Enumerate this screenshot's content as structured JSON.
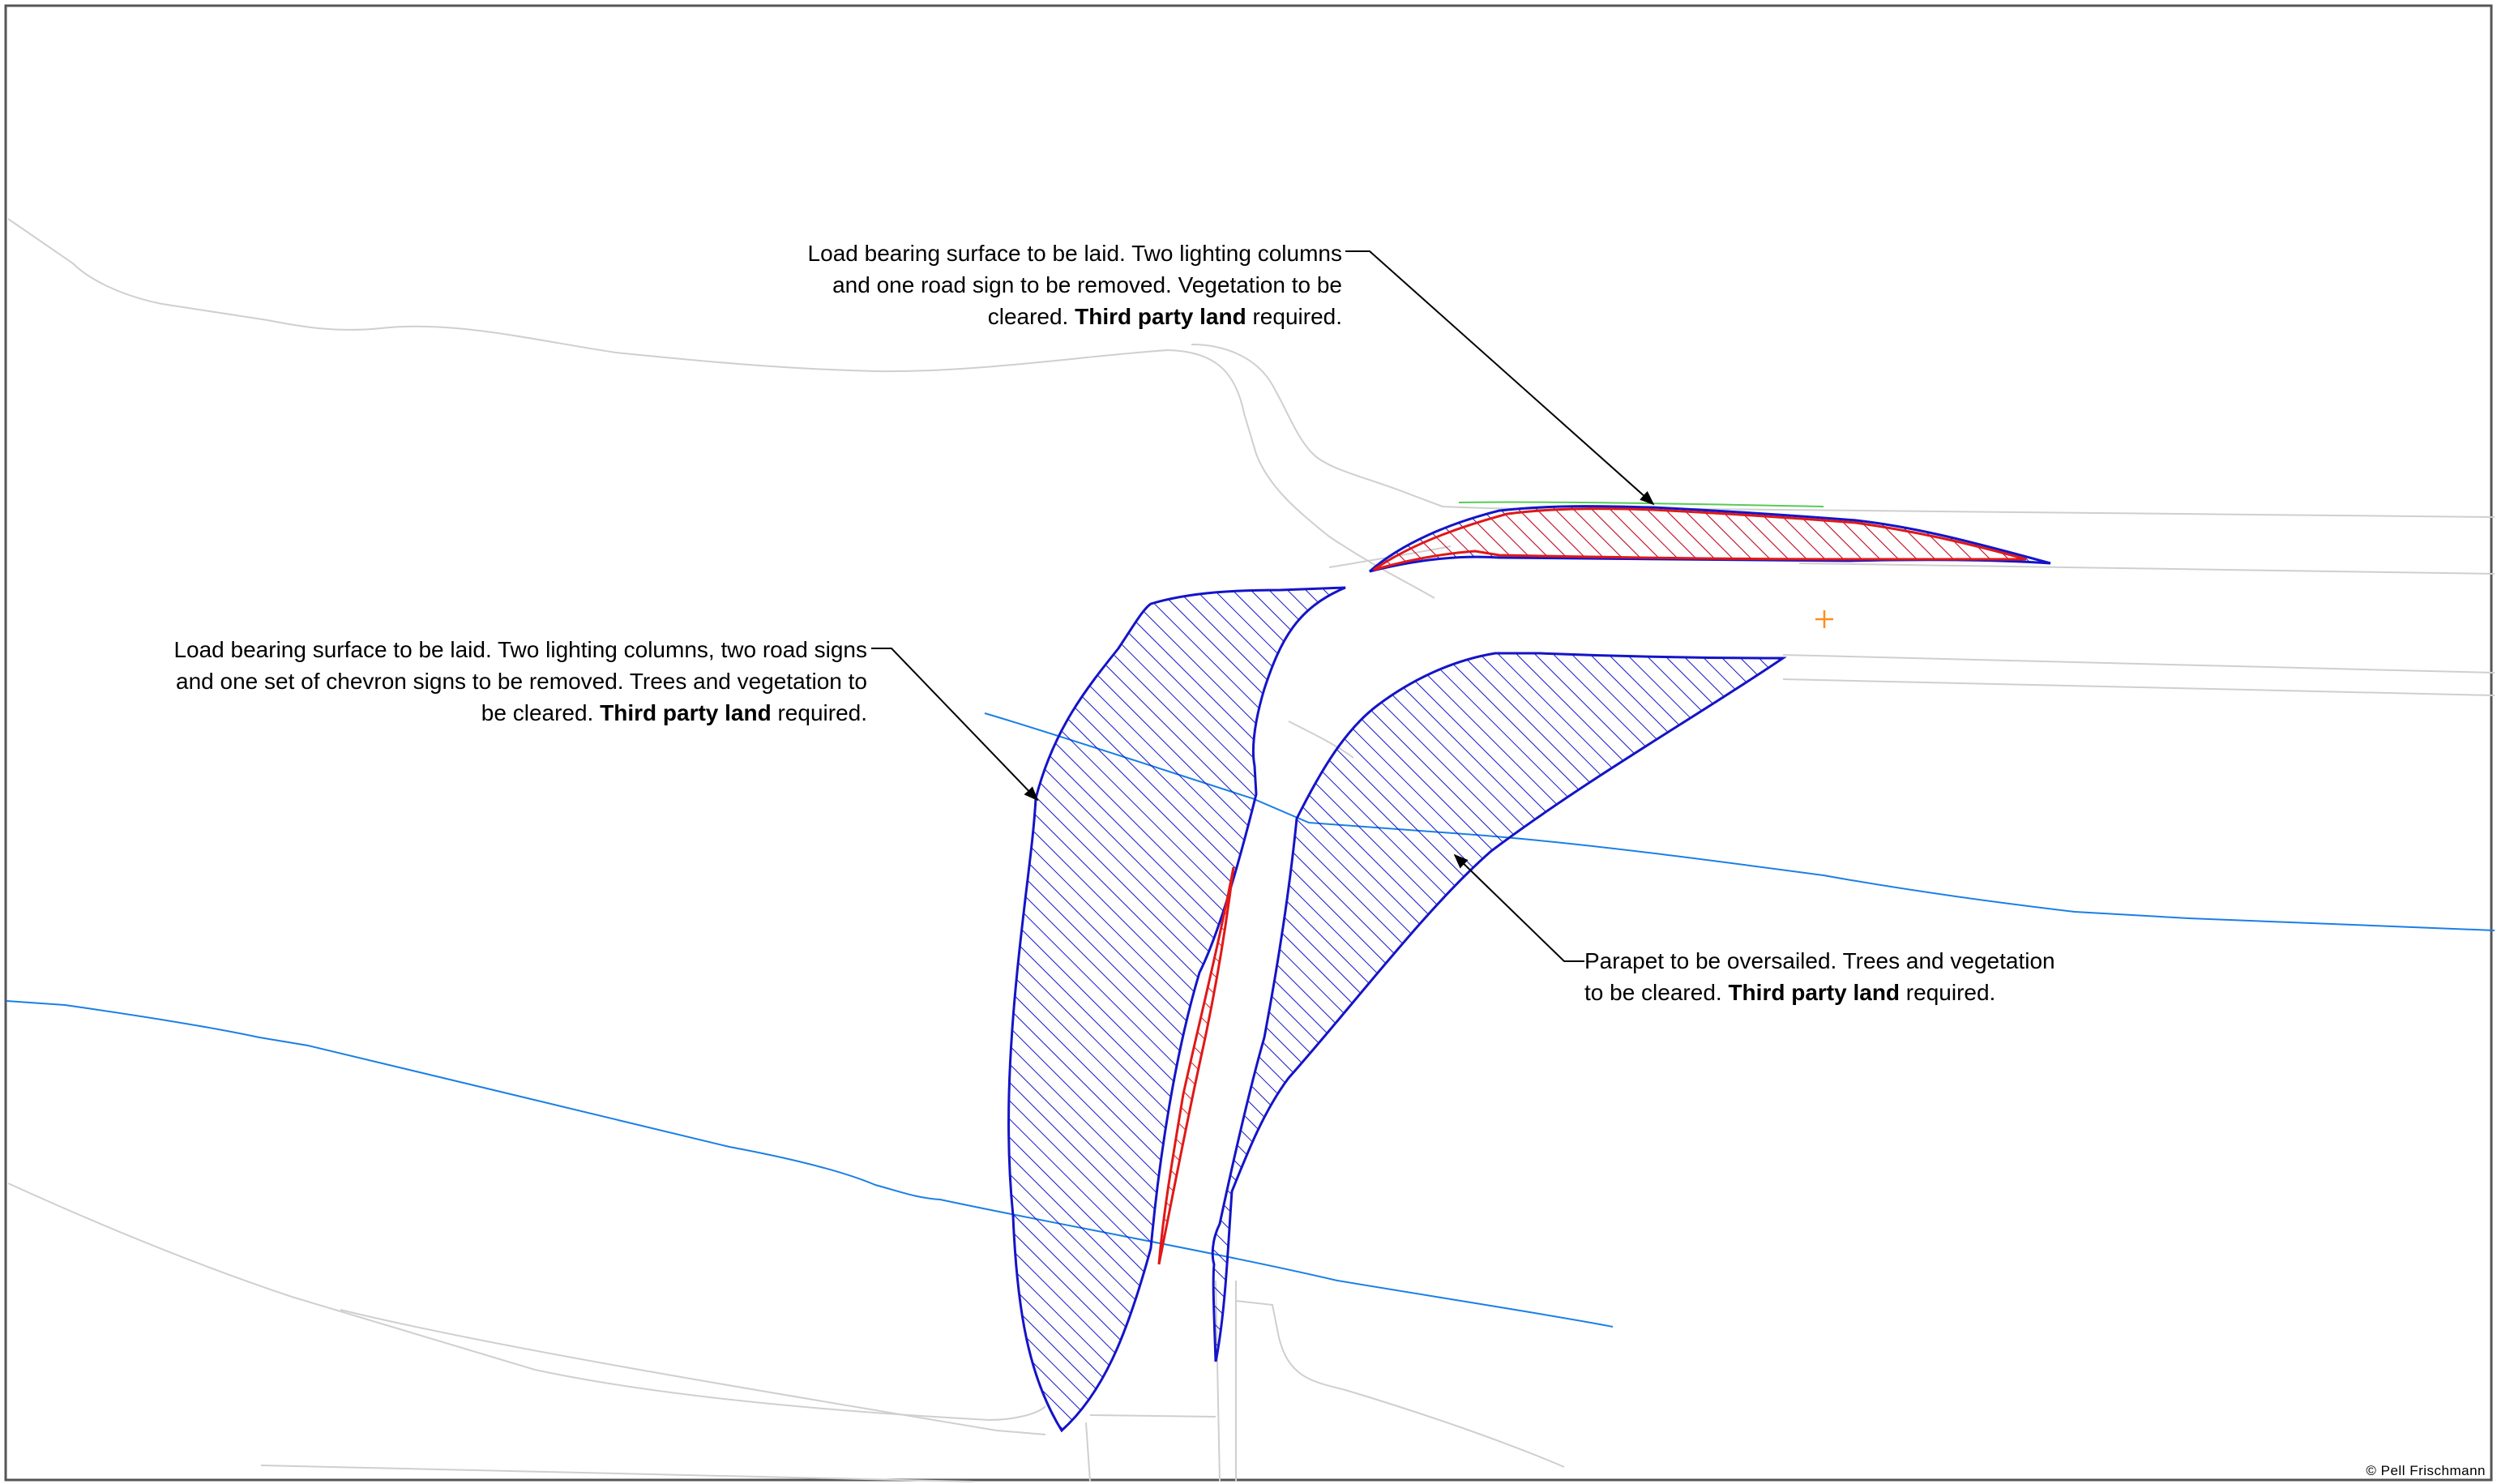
{
  "annotations": {
    "upper_right": {
      "line1": "Load bearing surface to be laid. Two lighting columns",
      "line2": "and one road sign to be removed. Vegetation to be",
      "line3_pre": "cleared. ",
      "line3_bold": "Third party land",
      "line3_post": " required."
    },
    "left": {
      "line1": "Load bearing surface to be laid. Two lighting columns, two road signs",
      "line2": "and one set of chevron signs to be removed. Trees and vegetation to",
      "line3_pre": "be cleared. ",
      "line3_bold": "Third party land",
      "line3_post": " required."
    },
    "parapet": {
      "line1": "Parapet to be oversailed.  Trees and vegetation",
      "line2_pre": "to be cleared. ",
      "line2_bold": "Third party land",
      "line2_post": " required."
    }
  },
  "copyright": "© Pell  Frischmann",
  "colors": {
    "blue_hatch": "#1414c8",
    "red_hatch": "#e01818",
    "water_line": "#1a7fe6",
    "road_line": "#cfcfcf",
    "green_line": "#55cc55",
    "orange_marker": "#ff8c1a",
    "border": "#555555"
  }
}
